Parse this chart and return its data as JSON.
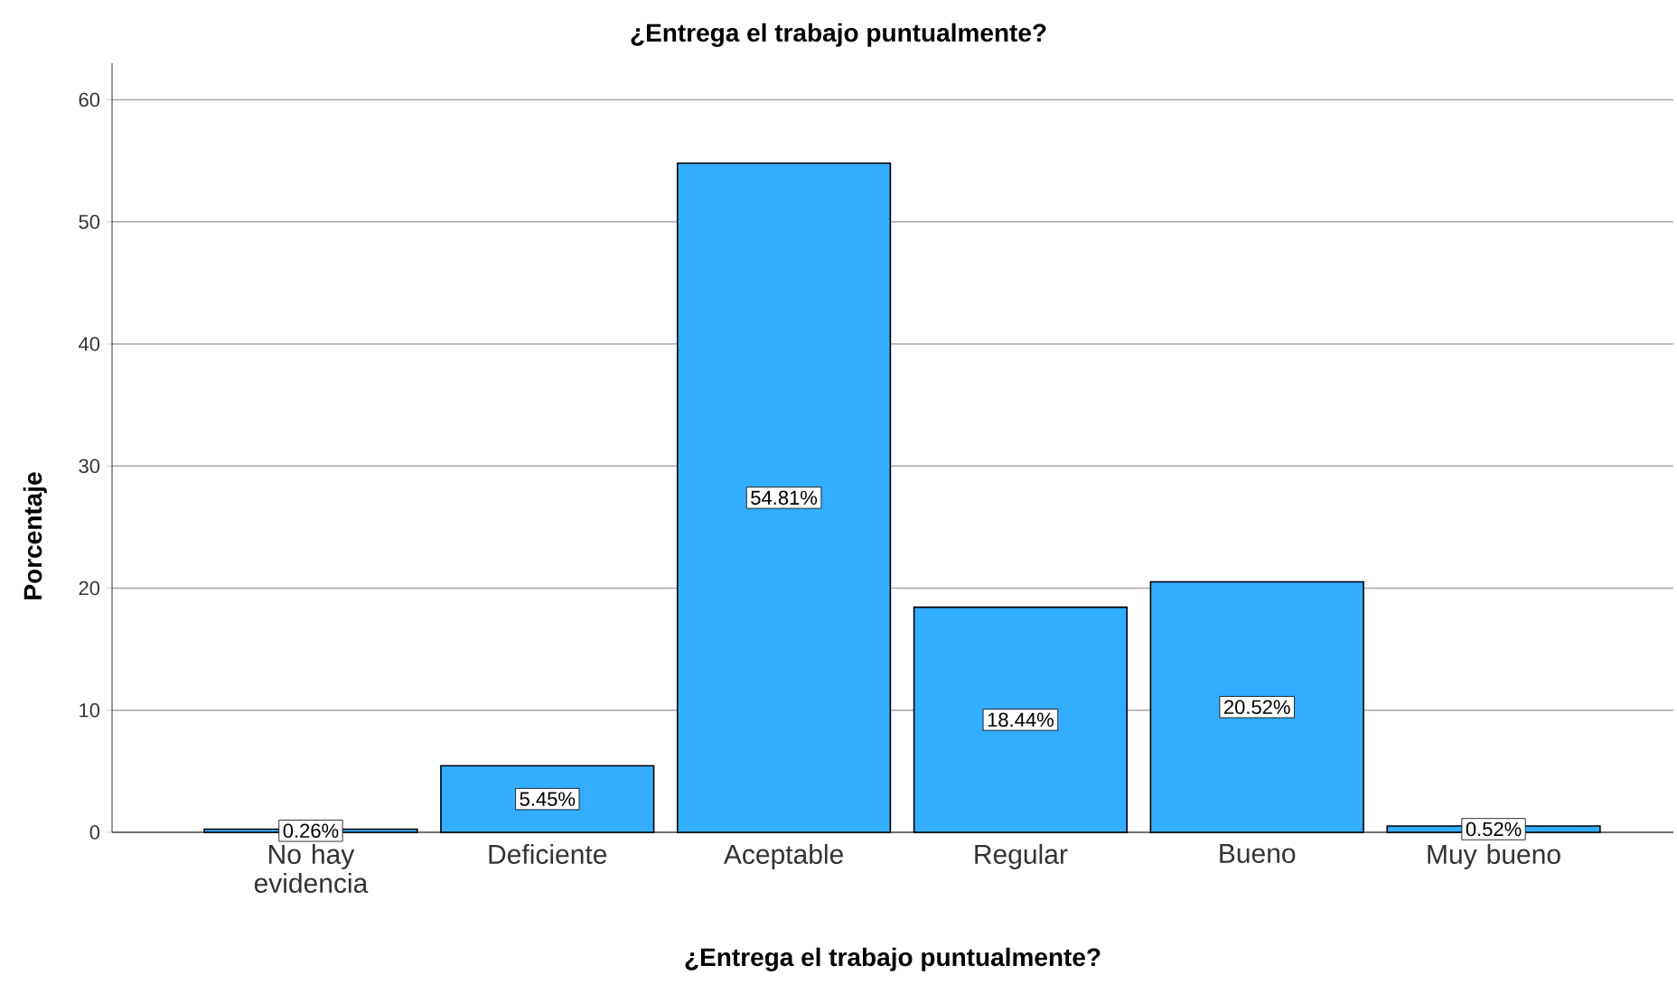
{
  "chart_data": {
    "type": "bar",
    "title": "¿Entrega el trabajo puntualmente?",
    "xlabel": "¿Entrega el trabajo puntualmente?",
    "ylabel": "Porcentaje",
    "categories": [
      "No hay evidencia",
      "Deficiente",
      "Aceptable",
      "Regular",
      "Bueno",
      "Muy bueno"
    ],
    "values": [
      0.26,
      5.45,
      54.81,
      18.44,
      20.52,
      0.52
    ],
    "value_labels": [
      "0.26%",
      "5.45%",
      "54.81%",
      "18.44%",
      "20.52%",
      "0.52%"
    ],
    "color": "#33adff",
    "ylim": [
      0,
      63
    ],
    "yticks": [
      0,
      10,
      20,
      30,
      40,
      50,
      60
    ],
    "grid": "y"
  }
}
